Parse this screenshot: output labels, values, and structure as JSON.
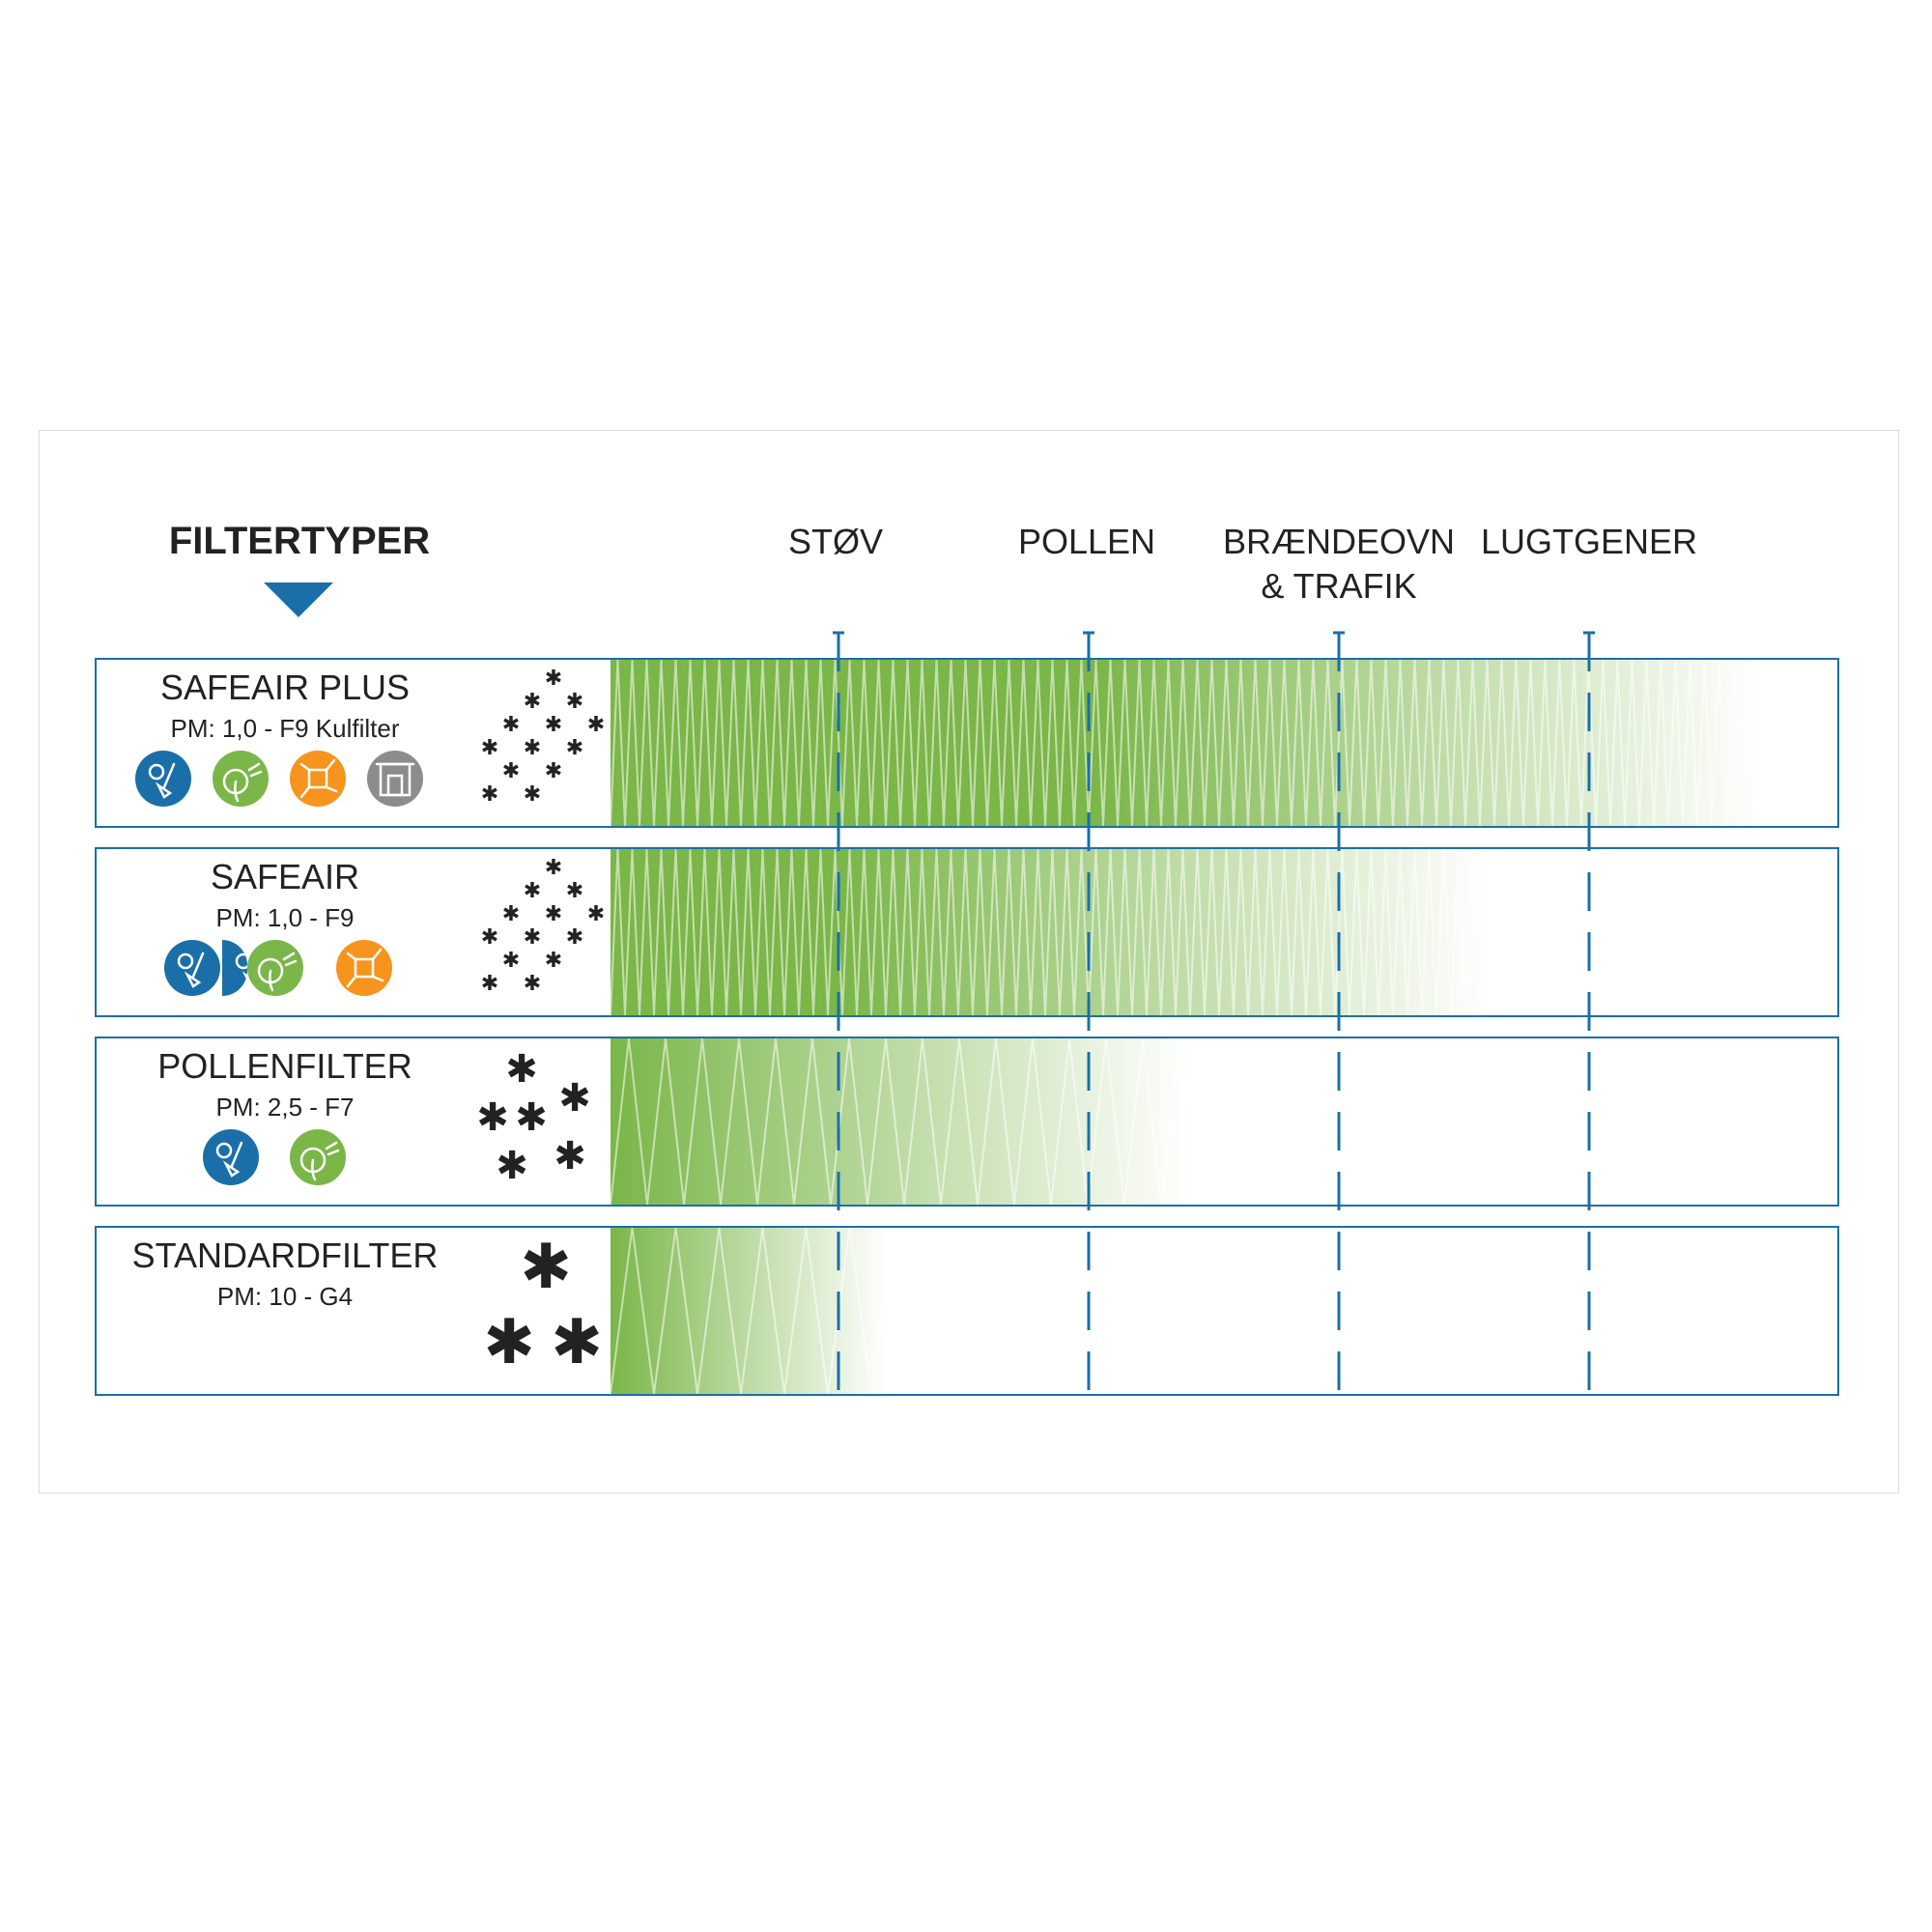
{
  "title": "FILTERTYPER",
  "columns": [
    "STØV",
    "POLLEN",
    "BRÆNDEOVN\n& TRAFIK",
    "LUGTGENER"
  ],
  "colors": {
    "accent_blue": "#1a6fa8",
    "green": "#7ab648",
    "orange": "#f7941d",
    "gray": "#8c8c8c"
  },
  "filters": [
    {
      "name": "SAFEAIR PLUS",
      "pm": "PM: 1,0 - F9 Kulfilter",
      "icons": [
        "dust-icon",
        "pollen-icon",
        "molecule-icon",
        "fireplace-icon"
      ],
      "particles": "fine"
    },
    {
      "name": "SAFEAIR",
      "pm": "PM: 1,0 - F9",
      "icons": [
        "dust-icon",
        "dust-icon",
        "pollen-icon",
        "molecule-icon"
      ],
      "particles": "fine"
    },
    {
      "name": "POLLENFILTER",
      "pm": "PM: 2,5 - F7",
      "icons": [
        "dust-icon",
        "pollen-icon"
      ],
      "particles": "medium"
    },
    {
      "name": "STANDARDFILTER",
      "pm": "PM: 10 - G4",
      "icons": [],
      "particles": "coarse"
    }
  ]
}
